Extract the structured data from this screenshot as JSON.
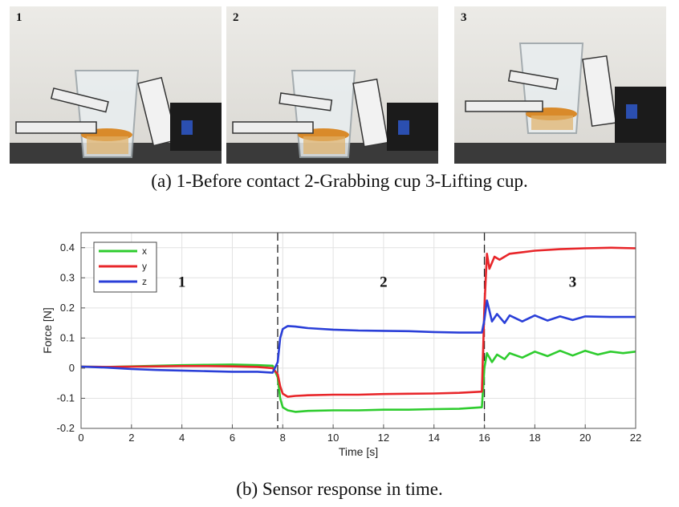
{
  "photos": [
    {
      "label": "1",
      "lift": 0
    },
    {
      "label": "2",
      "lift": 0
    },
    {
      "label": "3",
      "lift": 18
    }
  ],
  "caption_a": "(a) 1-Before contact 2-Grabbing cup 3-Lifting cup.",
  "caption_b": "(b) Sensor response in time.",
  "colors": {
    "x": "#2ecc2e",
    "y": "#e8262a",
    "z": "#2a3fd8"
  },
  "chart_data": {
    "type": "line",
    "xlabel": "Time [s]",
    "ylabel": "Force [N]",
    "xlim": [
      0,
      22
    ],
    "ylim": [
      -0.2,
      0.45
    ],
    "xticks": [
      0,
      2,
      4,
      6,
      8,
      10,
      12,
      14,
      16,
      18,
      20,
      22
    ],
    "yticks": [
      -0.2,
      -0.1,
      0,
      0.1,
      0.2,
      0.3,
      0.4
    ],
    "ytick_labels": [
      "-0.2",
      "-0.1",
      "0",
      "0.1",
      "0.2",
      "0.3",
      "0.4"
    ],
    "grid": true,
    "legend_position": "top-left",
    "phase_boundaries": [
      7.8,
      16.0
    ],
    "phase_labels": [
      {
        "text": "1",
        "x": 4.0,
        "y": 0.27
      },
      {
        "text": "2",
        "x": 12.0,
        "y": 0.27
      },
      {
        "text": "3",
        "x": 19.5,
        "y": 0.27
      }
    ],
    "series": [
      {
        "name": "x",
        "color": "#2ecc2e",
        "x": [
          0,
          1,
          2,
          3,
          4,
          5,
          6,
          7,
          7.6,
          7.8,
          7.9,
          8.0,
          8.2,
          8.5,
          9,
          10,
          11,
          12,
          13,
          14,
          15,
          15.9,
          16.0,
          16.1,
          16.3,
          16.5,
          16.8,
          17,
          17.5,
          18,
          18.5,
          19,
          19.5,
          20,
          20.5,
          21,
          21.5,
          22
        ],
        "y": [
          0.005,
          0.004,
          0.006,
          0.008,
          0.01,
          0.011,
          0.012,
          0.01,
          0.008,
          -0.03,
          -0.1,
          -0.13,
          -0.14,
          -0.145,
          -0.142,
          -0.14,
          -0.14,
          -0.138,
          -0.138,
          -0.136,
          -0.135,
          -0.13,
          0.0,
          0.05,
          0.02,
          0.045,
          0.03,
          0.05,
          0.035,
          0.055,
          0.04,
          0.058,
          0.042,
          0.058,
          0.045,
          0.055,
          0.05,
          0.055
        ]
      },
      {
        "name": "y",
        "color": "#e8262a",
        "x": [
          0,
          1,
          2,
          3,
          4,
          5,
          6,
          7,
          7.6,
          7.8,
          7.9,
          8.0,
          8.2,
          8.5,
          9,
          10,
          11,
          12,
          13,
          14,
          15,
          15.9,
          16.0,
          16.1,
          16.2,
          16.4,
          16.6,
          17,
          17.5,
          18,
          19,
          20,
          21,
          22
        ],
        "y": [
          0.005,
          0.004,
          0.005,
          0.006,
          0.007,
          0.007,
          0.006,
          0.004,
          0.0,
          -0.02,
          -0.06,
          -0.085,
          -0.095,
          -0.092,
          -0.09,
          -0.088,
          -0.088,
          -0.086,
          -0.085,
          -0.084,
          -0.082,
          -0.078,
          0.2,
          0.38,
          0.33,
          0.37,
          0.36,
          0.38,
          0.385,
          0.39,
          0.395,
          0.398,
          0.4,
          0.398
        ]
      },
      {
        "name": "z",
        "color": "#2a3fd8",
        "x": [
          0,
          1,
          2,
          3,
          4,
          5,
          6,
          7,
          7.6,
          7.8,
          7.9,
          8.0,
          8.2,
          8.5,
          9,
          10,
          11,
          12,
          13,
          14,
          15,
          15.9,
          16.0,
          16.1,
          16.3,
          16.5,
          16.8,
          17,
          17.5,
          18,
          18.5,
          19,
          19.5,
          20,
          21,
          22
        ],
        "y": [
          0.005,
          0.002,
          -0.003,
          -0.006,
          -0.008,
          -0.01,
          -0.012,
          -0.012,
          -0.015,
          0.02,
          0.1,
          0.13,
          0.14,
          0.138,
          0.133,
          0.128,
          0.125,
          0.124,
          0.123,
          0.12,
          0.118,
          0.118,
          0.16,
          0.225,
          0.155,
          0.18,
          0.15,
          0.175,
          0.155,
          0.175,
          0.158,
          0.172,
          0.16,
          0.172,
          0.17,
          0.17
        ]
      }
    ]
  }
}
